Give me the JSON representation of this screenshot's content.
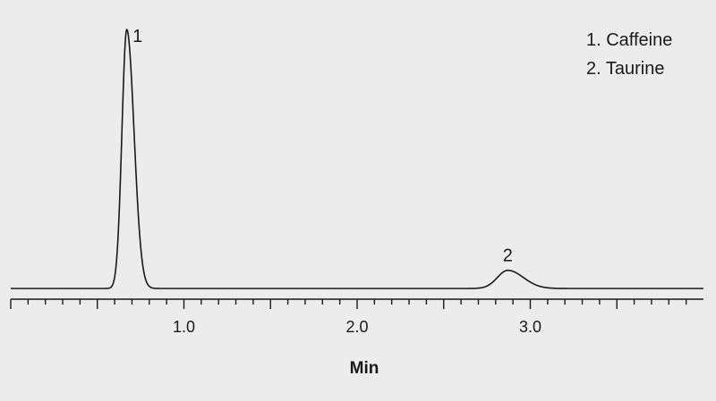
{
  "chart_data": {
    "type": "line",
    "title": "",
    "xlabel": "Min",
    "ylabel": "",
    "xlim": [
      0.0,
      4.0
    ],
    "ylim": [
      0,
      100
    ],
    "grid": false,
    "legend_position": "top-right",
    "legend": [
      "1. Caffeine",
      "2. Taurine"
    ],
    "x_ticks": [
      {
        "value": 1.0,
        "label": "1.0"
      },
      {
        "value": 2.0,
        "label": "2.0"
      },
      {
        "value": 3.0,
        "label": "3.0"
      }
    ],
    "minor_tick_step": 0.1,
    "peaks": [
      {
        "label": "1",
        "name": "Caffeine",
        "retention_time": 0.67,
        "height": 100,
        "width": 0.028
      },
      {
        "label": "2",
        "name": "Taurine",
        "retention_time": 2.87,
        "height": 7,
        "width": 0.06
      }
    ],
    "line_color": "#1a1a1a",
    "background_color": "#ececec"
  }
}
